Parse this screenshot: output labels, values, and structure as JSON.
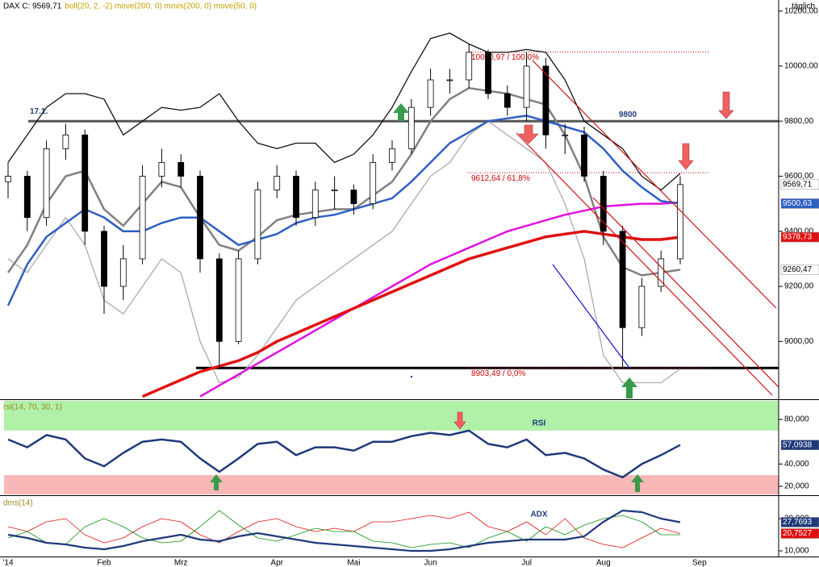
{
  "chart_data": [
    {
      "type": "candlestick",
      "title": "DAX C: 9569,71",
      "subtitle": "boll(20, 2, -2) move(200, 0) movs(200, 0) move(50, 0)",
      "period": "täglich",
      "ylim": [
        8790,
        10240
      ],
      "yticks": [
        {
          "value": 9000,
          "label": "9000,00"
        },
        {
          "value": 9200,
          "label": "9200,00"
        },
        {
          "value": 9400,
          "label": "9400,00"
        },
        {
          "value": 9600,
          "label": "9600,00"
        },
        {
          "value": 9800,
          "label": "9800,00"
        },
        {
          "value": 10000,
          "label": "10000,00"
        },
        {
          "value": 10200,
          "label": "10200,00"
        }
      ],
      "open": [
        9580,
        9600,
        9450,
        9700,
        9750,
        9400,
        9200,
        9300,
        9600,
        9650,
        9600,
        9300,
        9000,
        9300,
        9550,
        9600,
        9450,
        9550,
        9550,
        9500,
        9650,
        9700,
        9850,
        9950,
        9950,
        10050,
        9900,
        9850,
        10000,
        9750,
        9750,
        9600,
        9400,
        9050,
        9200,
        9300,
        null
      ],
      "high": [
        9650,
        9620,
        9730,
        9790,
        9770,
        9420,
        9350,
        9640,
        9700,
        9680,
        9620,
        9320,
        9330,
        9580,
        9640,
        9620,
        9580,
        9600,
        9570,
        9680,
        9730,
        9880,
        9990,
        9990,
        10080,
        10060,
        9930,
        10050,
        10030,
        9790,
        9780,
        9620,
        9420,
        9230,
        9330,
        9600,
        null
      ],
      "low": [
        9520,
        9400,
        9420,
        9660,
        9350,
        9100,
        9150,
        9280,
        9560,
        9560,
        9250,
        8903,
        8990,
        9280,
        9520,
        9420,
        9420,
        9480,
        9460,
        9480,
        9620,
        9680,
        9820,
        9900,
        9920,
        9880,
        9820,
        9800,
        9700,
        9680,
        9580,
        9350,
        8903,
        9020,
        9180,
        9280,
        null
      ],
      "close": [
        9600,
        9450,
        9700,
        9750,
        9400,
        9200,
        9300,
        9600,
        9650,
        9600,
        9300,
        9000,
        9300,
        9550,
        9600,
        9450,
        9550,
        9550,
        9500,
        9650,
        9700,
        9850,
        9950,
        9950,
        10050,
        9900,
        9850,
        10000,
        9750,
        9750,
        9600,
        9400,
        9050,
        9200,
        9300,
        9569.71,
        null
      ],
      "last_label": "9569,71",
      "color_up": "#ffffff",
      "color_down": "#000000",
      "series": [
        {
          "color": "#111111",
          "width": 1.3,
          "values": [
            9650,
            9750,
            9850,
            9900,
            9900,
            9880,
            9750,
            9800,
            9850,
            9840,
            9850,
            9900,
            9800,
            9720,
            9700,
            9720,
            9720,
            9650,
            9680,
            9750,
            9850,
            9980,
            10100,
            10120,
            10080,
            10050,
            10050,
            10060,
            10050,
            9950,
            9800,
            9750,
            9700,
            9600,
            9550,
            9610,
            null
          ]
        },
        {
          "color": "#aaaaaa",
          "width": 1.3,
          "values": [
            9300,
            9250,
            9350,
            9450,
            9350,
            9150,
            9100,
            9200,
            9300,
            9250,
            9000,
            8850,
            8870,
            8950,
            9050,
            9150,
            9200,
            9250,
            9300,
            9350,
            9400,
            9500,
            9600,
            9650,
            9750,
            9800,
            9750,
            9700,
            9650,
            9500,
            9300,
            8950,
            8850,
            8850,
            8850,
            8900,
            null
          ]
        },
        {
          "color": "#808080",
          "width": 2.5,
          "values": [
            9250,
            9350,
            9500,
            9600,
            9620,
            9480,
            9420,
            9500,
            9580,
            9560,
            9450,
            9350,
            9330,
            9380,
            9440,
            9460,
            9470,
            9480,
            9480,
            9530,
            9580,
            9680,
            9800,
            9880,
            9920,
            9910,
            9900,
            9880,
            9860,
            9750,
            9600,
            9380,
            9270,
            9240,
            9250,
            9260.47,
            null
          ],
          "last_label": "9260,47",
          "label_fill": "#ffffff",
          "label_text": "#000000"
        },
        {
          "color": "#e010e0",
          "width": 2.5,
          "values": [
            null,
            null,
            null,
            null,
            null,
            null,
            null,
            null,
            null,
            null,
            8800,
            8840,
            8880,
            8920,
            8960,
            9000,
            9040,
            9080,
            9120,
            9160,
            9200,
            9240,
            9280,
            9310,
            9340,
            9370,
            9400,
            9420,
            9440,
            9460,
            9475,
            9490,
            9495,
            9500,
            9500,
            9505,
            null
          ]
        },
        {
          "color": "#e01010",
          "width": 3.5,
          "values": [
            null,
            null,
            null,
            null,
            null,
            null,
            null,
            8800,
            8830,
            8860,
            8890,
            8910,
            8930,
            8960,
            9000,
            9030,
            9060,
            9090,
            9120,
            9150,
            9180,
            9210,
            9240,
            9270,
            9300,
            9320,
            9340,
            9360,
            9380,
            9390,
            9400,
            9390,
            9380,
            9370,
            9370,
            9378.73,
            null
          ],
          "last_label": "9378,73",
          "label_fill": "#e01010",
          "label_text": "#ffffff"
        },
        {
          "color": "#2e5fc4",
          "width": 2.5,
          "values": [
            9130,
            9280,
            9380,
            9430,
            9480,
            9450,
            9400,
            9400,
            9430,
            9450,
            9450,
            9400,
            9350,
            9370,
            9390,
            9430,
            9450,
            9460,
            9480,
            9500,
            9520,
            9580,
            9650,
            9720,
            9760,
            9800,
            9810,
            9820,
            9800,
            9780,
            9760,
            9700,
            9620,
            9560,
            9510,
            9500.63,
            null
          ],
          "last_label": "9500,63",
          "label_fill": "#2e5fc4",
          "label_text": "#ffffff"
        }
      ],
      "levels": [
        {
          "value": 9800,
          "label": "9800",
          "start_label": "17.1.",
          "color": "#555555",
          "style": "solid"
        },
        {
          "value": 8903.49,
          "color": "#000000",
          "style": "solid"
        },
        {
          "value": 10050.97,
          "label": "10050,97 / 100,0%",
          "color": "#cc0000",
          "style": "dotted"
        },
        {
          "value": 9612.64,
          "label": "9612,64 / 61,8%",
          "color": "#cc0000",
          "style": "dotted"
        },
        {
          "value": 8903.49,
          "label": "8903,49 / 0,0%",
          "color": "#cc0000",
          "style": "dotted"
        }
      ]
    },
    {
      "type": "line",
      "title": "rsi(14, 70, 30, 1)",
      "label": "RSI",
      "ylim": [
        12.7,
        96.7
      ],
      "yticks": [
        {
          "value": 20,
          "label": "20,000"
        },
        {
          "value": 40,
          "label": "40,000"
        },
        {
          "value": 80,
          "label": "80,000"
        }
      ],
      "bands": [
        {
          "from": 70,
          "to": 100,
          "color": "#b0f0a8"
        },
        {
          "from": 0,
          "to": 30,
          "color": "#f8b8b8"
        }
      ],
      "series": [
        {
          "color": "#1f3a7a",
          "width": 2.5,
          "values": [
            62,
            55,
            66,
            62,
            45,
            38,
            50,
            60,
            62,
            60,
            45,
            33,
            45,
            58,
            60,
            48,
            55,
            55,
            52,
            60,
            60,
            65,
            68,
            66,
            70,
            58,
            55,
            62,
            48,
            50,
            45,
            35,
            28,
            40,
            48,
            57.0938,
            null
          ],
          "last_label": "57,0938",
          "label_fill": "#1f3a7a",
          "label_text": "#ffffff"
        }
      ]
    },
    {
      "type": "line",
      "title": "dms(14)",
      "label": "ADX",
      "ylim": [
        6.5,
        43.5
      ],
      "yticks": [
        {
          "value": 10,
          "label": "10,000"
        },
        {
          "value": 30,
          "label": "30,000"
        }
      ],
      "categories": [
        "'14",
        null,
        null,
        null,
        null,
        "Feb",
        null,
        null,
        null,
        "Mrz",
        null,
        null,
        null,
        null,
        "Apr",
        null,
        null,
        null,
        "Mai",
        null,
        null,
        null,
        "Jun",
        null,
        null,
        null,
        null,
        "Jul",
        null,
        null,
        null,
        "Aug",
        null,
        null,
        null,
        null,
        "Sep"
      ],
      "series": [
        {
          "color": "#e01010",
          "width": 0.8,
          "values": [
            25,
            22,
            28,
            30,
            20,
            15,
            18,
            25,
            30,
            28,
            20,
            15,
            22,
            28,
            30,
            25,
            22,
            24,
            22,
            28,
            28,
            30,
            32,
            30,
            34,
            25,
            22,
            28,
            20,
            30,
            18,
            14,
            12,
            18,
            24,
            20.7527,
            null
          ],
          "last_label": "20,7527",
          "label_fill": "#e01010",
          "label_text": "#ffffff"
        },
        {
          "color": "#109010",
          "width": 0.8,
          "values": [
            18,
            22,
            15,
            14,
            25,
            30,
            25,
            18,
            15,
            16,
            25,
            35,
            26,
            18,
            16,
            20,
            24,
            22,
            22,
            16,
            15,
            12,
            14,
            15,
            12,
            18,
            22,
            16,
            25,
            20,
            26,
            30,
            32,
            28,
            20,
            20,
            null
          ]
        },
        {
          "color": "#1f3a7a",
          "width": 2.2,
          "values": [
            20,
            18,
            15,
            14,
            12,
            11,
            13,
            16,
            18,
            20,
            17,
            16,
            19,
            21,
            19,
            17,
            15,
            14,
            13,
            12,
            11,
            10,
            10,
            11,
            13,
            15,
            16,
            17,
            17,
            17,
            19,
            28,
            35,
            34,
            30,
            27.7693,
            null
          ],
          "last_label": "27,7693",
          "label_fill": "#1f3a7a",
          "label_text": "#ffffff"
        }
      ]
    }
  ]
}
